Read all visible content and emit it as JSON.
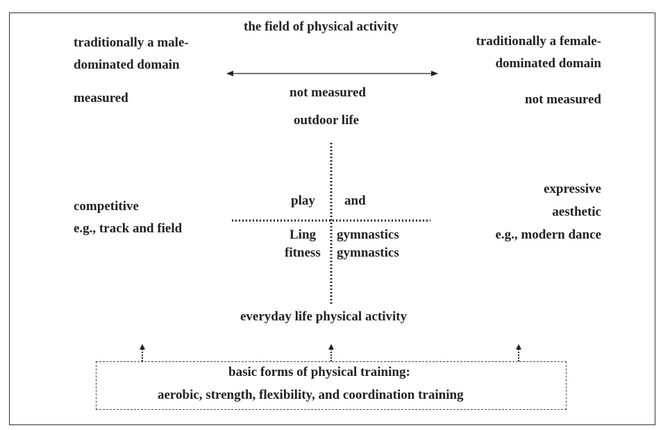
{
  "title": "the field of physical activity",
  "left": {
    "domain_line1": "traditionally a male-",
    "domain_line2": "dominated domain",
    "measured": "measured",
    "type_line1": "competitive",
    "type_line2": "e.g., track and field"
  },
  "right": {
    "domain_line1": "traditionally a female-",
    "domain_line2": "dominated domain",
    "measured": "not measured",
    "type_line1": "expressive",
    "type_line2": "aesthetic",
    "type_line3": "e.g., modern dance"
  },
  "center": {
    "not_measured": "not measured",
    "top": "outdoor life",
    "q_top_left": "play",
    "q_top_right": "and",
    "q_bottom_left_1": "Ling",
    "q_bottom_right_1": "gymnastics",
    "q_bottom_left_2": "fitness",
    "q_bottom_right_2": "gymnastics",
    "bottom": "everyday life physical activity"
  },
  "basic": {
    "line1": "basic forms of physical training:",
    "line2": "aerobic, strength, flexibility, and coordination training"
  }
}
